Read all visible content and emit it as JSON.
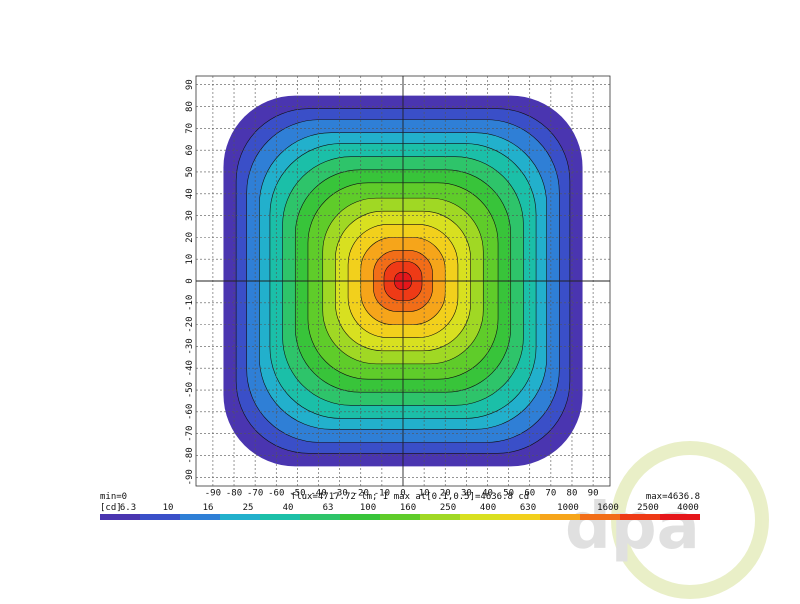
{
  "chart_data": {
    "type": "heatmap",
    "xlim": [
      -98,
      98
    ],
    "ylim": [
      -94,
      94
    ],
    "xticks": [
      -90,
      -80,
      -70,
      -60,
      -50,
      -40,
      -30,
      -20,
      -10,
      0,
      10,
      20,
      30,
      40,
      50,
      60,
      70,
      80,
      90
    ],
    "yticks": [
      -90,
      -80,
      -70,
      -60,
      -50,
      -40,
      -30,
      -20,
      -10,
      0,
      10,
      20,
      30,
      40,
      50,
      60,
      70,
      80,
      90
    ],
    "grid": true,
    "min_label": "min=0",
    "info": "flux=4717.72 lm; I max at[0.1,0.5]=4636.8 cd",
    "max_label": "max=4636.8",
    "colorbar_unit": "[cd]",
    "colorbar_ticks": [
      6.3,
      10,
      16,
      25,
      40,
      63,
      100,
      160,
      250,
      400,
      630,
      1000,
      1600,
      2500,
      4000
    ],
    "colors": [
      "#4a35b0",
      "#3a4fc8",
      "#2f7fd6",
      "#22b0cc",
      "#1bbfa8",
      "#2ec46a",
      "#38c43a",
      "#5fcc2a",
      "#a0d824",
      "#d8e020",
      "#f2d01c",
      "#f6a51a",
      "#f26d18",
      "#ee3a16",
      "#e5161a"
    ],
    "contour_extent": [
      85,
      79,
      74,
      68,
      63,
      57,
      51,
      45,
      38,
      32,
      26,
      20,
      14,
      9,
      4
    ],
    "watermark": "dpa"
  }
}
